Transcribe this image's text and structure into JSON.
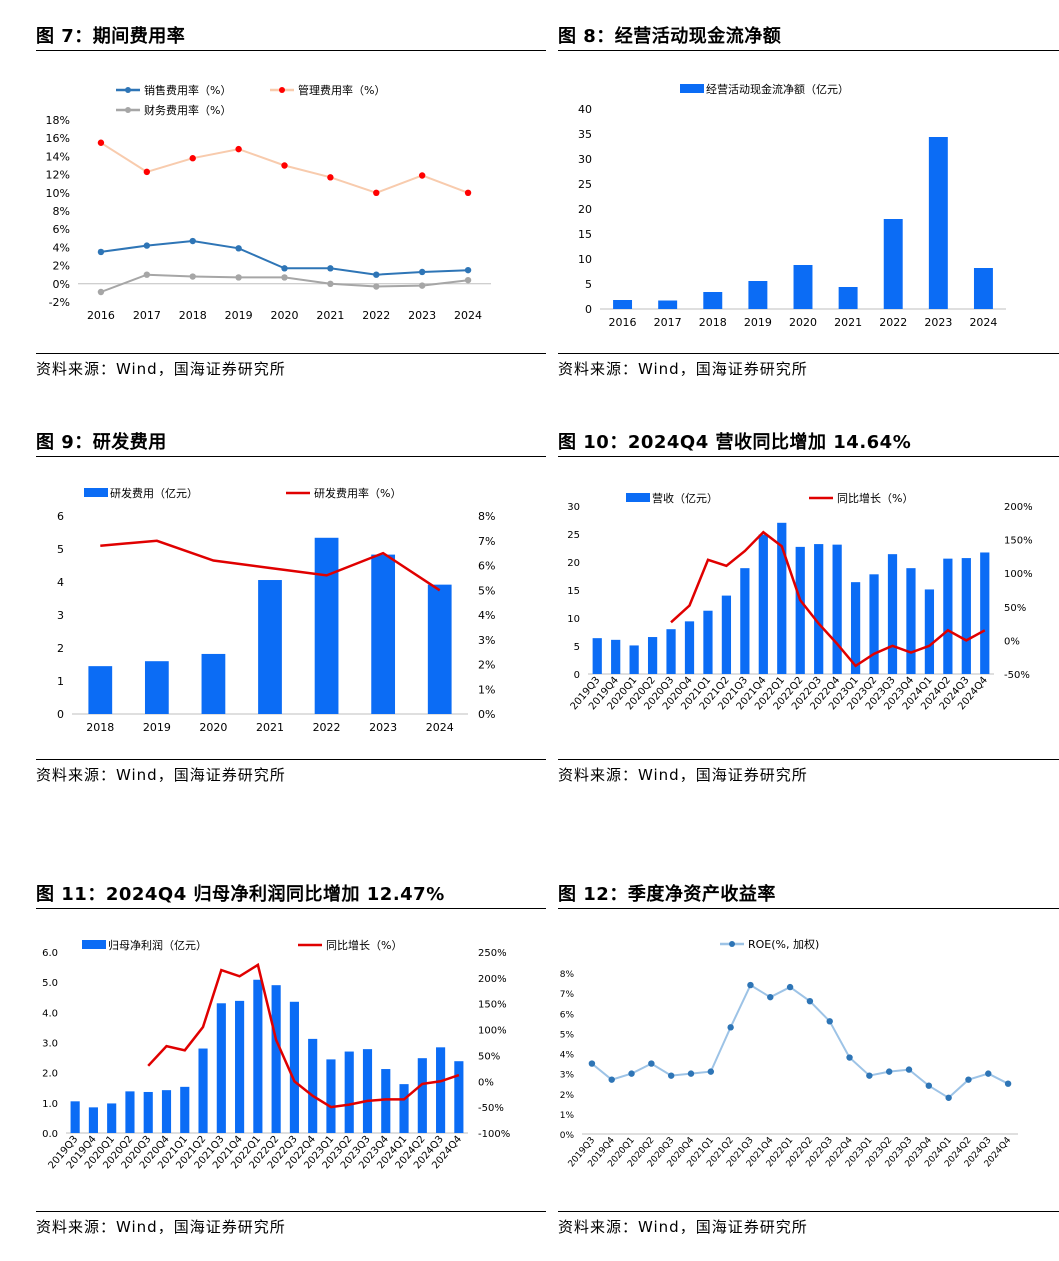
{
  "panels": [
    {
      "title": "图 7：期间费用率",
      "source": "资料来源：Wind，国海证券研究所",
      "chart_data": {
        "type": "line",
        "categories": [
          "2016",
          "2017",
          "2018",
          "2019",
          "2020",
          "2021",
          "2022",
          "2023",
          "2024"
        ],
        "series": [
          {
            "name": "销售费用率（%）",
            "color": "#2e75b6",
            "values": [
              3.5,
              4.2,
              4.7,
              3.9,
              1.7,
              1.7,
              1.0,
              1.3,
              1.5
            ]
          },
          {
            "name": "管理费用率（%）",
            "color": "#ff0000",
            "line_color": "#f8cbad",
            "values": [
              15.5,
              12.3,
              13.8,
              14.8,
              13.0,
              11.7,
              10.0,
              11.9,
              10.0
            ]
          },
          {
            "name": "财务费用率（%）",
            "color": "#a6a6a6",
            "values": [
              -0.9,
              1.0,
              0.8,
              0.7,
              0.7,
              0.0,
              -0.3,
              -0.2,
              0.4
            ]
          }
        ],
        "yticks": [
          "-2%",
          "0%",
          "2%",
          "4%",
          "6%",
          "8%",
          "10%",
          "12%",
          "14%",
          "16%",
          "18%"
        ],
        "ylim": [
          -2,
          18
        ],
        "grid": false,
        "legend": "top"
      }
    },
    {
      "title": "图 8：经营活动现金流净额",
      "source": "资料来源：Wind，国海证券研究所",
      "chart_data": {
        "type": "bar",
        "categories": [
          "2016",
          "2017",
          "2018",
          "2019",
          "2020",
          "2021",
          "2022",
          "2023",
          "2024"
        ],
        "series": [
          {
            "name": "经营活动现金流净额（亿元）",
            "color": "#0b6cf5",
            "values": [
              1.8,
              1.7,
              3.4,
              5.6,
              8.8,
              4.4,
              18.0,
              34.4,
              8.2
            ]
          }
        ],
        "yticks": [
          "0",
          "5",
          "10",
          "15",
          "20",
          "25",
          "30",
          "35",
          "40"
        ],
        "ylim": [
          0,
          40
        ],
        "grid": false,
        "legend": "top"
      }
    },
    {
      "title": "图 9：研发费用",
      "source": "资料来源：Wind，国海证券研究所",
      "chart_data": {
        "type": "bar",
        "categories": [
          "2018",
          "2019",
          "2020",
          "2021",
          "2022",
          "2023",
          "2024"
        ],
        "series": [
          {
            "name": "研发费用（亿元）",
            "kind": "bar",
            "axis": "left",
            "color": "#0b6cf5",
            "values": [
              1.45,
              1.6,
              1.82,
              4.06,
              5.34,
              4.83,
              3.92
            ]
          },
          {
            "name": "研发费用率（%）",
            "kind": "line",
            "axis": "right",
            "color": "#e00000",
            "values": [
              6.8,
              7.0,
              6.2,
              5.9,
              5.6,
              6.5,
              5.0
            ]
          }
        ],
        "yticks": [
          "0",
          "1",
          "2",
          "3",
          "4",
          "5",
          "6"
        ],
        "ylim": [
          0,
          6
        ],
        "y2ticks": [
          "0%",
          "1%",
          "2%",
          "3%",
          "4%",
          "5%",
          "6%",
          "7%",
          "8%"
        ],
        "y2lim": [
          0,
          8
        ],
        "grid": false,
        "legend": "top"
      }
    },
    {
      "title": "图 10：2024Q4 营收同比增加 14.64%",
      "source": "资料来源：Wind，国海证券研究所",
      "chart_data": {
        "type": "bar",
        "categories": [
          "2019Q3",
          "2019Q4",
          "2020Q1",
          "2020Q2",
          "2020Q3",
          "2020Q4",
          "2021Q1",
          "2021Q2",
          "2021Q3",
          "2021Q4",
          "2022Q1",
          "2022Q2",
          "2022Q3",
          "2022Q4",
          "2023Q1",
          "2023Q2",
          "2023Q3",
          "2023Q4",
          "2024Q1",
          "2024Q2",
          "2024Q3",
          "2024Q4"
        ],
        "series": [
          {
            "name": "营收（亿元）",
            "kind": "bar",
            "axis": "left",
            "color": "#0b6cf5",
            "values": [
              6.4,
              6.1,
              5.1,
              6.6,
              8.0,
              9.4,
              11.3,
              14.0,
              18.9,
              24.9,
              27.0,
              22.7,
              23.2,
              23.1,
              16.4,
              17.8,
              21.4,
              18.9,
              15.1,
              20.6,
              20.7,
              21.7
            ]
          },
          {
            "name": "同比增长（%）",
            "kind": "line",
            "axis": "right",
            "color": "#e00000",
            "values": [
              null,
              null,
              null,
              null,
              27,
              52,
              120,
              111,
              133,
              161,
              140,
              60,
              25,
              -5,
              -38,
              -20,
              -8,
              -18,
              -8,
              15,
              0,
              15
            ]
          }
        ],
        "yticks": [
          "0",
          "5",
          "10",
          "15",
          "20",
          "25",
          "30"
        ],
        "ylim": [
          0,
          30
        ],
        "y2ticks": [
          "-50%",
          "0%",
          "50%",
          "100%",
          "150%",
          "200%"
        ],
        "y2lim": [
          -50,
          200
        ],
        "grid": false,
        "legend": "top"
      }
    },
    {
      "title": "图 11：2024Q4 归母净利润同比增加 12.47%",
      "source": "资料来源：Wind，国海证券研究所",
      "chart_data": {
        "type": "bar",
        "categories": [
          "2019Q3",
          "2019Q4",
          "2020Q1",
          "2020Q2",
          "2020Q3",
          "2020Q4",
          "2021Q1",
          "2021Q2",
          "2021Q3",
          "2021Q4",
          "2022Q1",
          "2022Q2",
          "2022Q3",
          "2022Q4",
          "2023Q1",
          "2023Q2",
          "2023Q3",
          "2023Q4",
          "2024Q1",
          "2024Q2",
          "2024Q3",
          "2024Q4"
        ],
        "series": [
          {
            "name": "归母净利润（亿元）",
            "kind": "bar",
            "axis": "left",
            "color": "#0b6cf5",
            "values": [
              1.05,
              0.85,
              0.98,
              1.38,
              1.36,
              1.42,
              1.53,
              2.8,
              4.3,
              4.38,
              5.08,
              4.9,
              4.35,
              3.12,
              2.44,
              2.7,
              2.78,
              2.12,
              1.62,
              2.48,
              2.84,
              2.38
            ]
          },
          {
            "name": "同比增长（%）",
            "kind": "line",
            "axis": "right",
            "color": "#e00000",
            "values": [
              null,
              null,
              null,
              null,
              30,
              68,
              60,
              105,
              215,
              203,
              225,
              80,
              0,
              -28,
              -50,
              -45,
              -38,
              -35,
              -35,
              -5,
              0,
              12
            ]
          }
        ],
        "yticks": [
          "0.0",
          "1.0",
          "2.0",
          "3.0",
          "4.0",
          "5.0",
          "6.0"
        ],
        "ylim": [
          0,
          6
        ],
        "y2ticks": [
          "-100%",
          "-50%",
          "0%",
          "50%",
          "100%",
          "150%",
          "200%",
          "250%"
        ],
        "y2lim": [
          -100,
          250
        ],
        "grid": false,
        "legend": "top"
      }
    },
    {
      "title": "图 12：季度净资产收益率",
      "source": "资料来源：Wind，国海证券研究所",
      "chart_data": {
        "type": "line",
        "categories": [
          "2019Q3",
          "2019Q4",
          "2020Q1",
          "2020Q2",
          "2020Q3",
          "2020Q4",
          "2021Q1",
          "2021Q2",
          "2021Q3",
          "2021Q4",
          "2022Q1",
          "2022Q2",
          "2022Q3",
          "2022Q4",
          "2023Q1",
          "2023Q2",
          "2023Q3",
          "2023Q4",
          "2024Q1",
          "2024Q2",
          "2024Q3",
          "2024Q4"
        ],
        "series": [
          {
            "name": "ROE(%, 加权)",
            "color": "#2e75b6",
            "line_color": "#9dc3e6",
            "values": [
              3.5,
              2.7,
              3.0,
              3.5,
              2.9,
              3.0,
              3.1,
              5.3,
              7.4,
              6.8,
              7.3,
              6.6,
              5.6,
              3.8,
              2.9,
              3.1,
              3.2,
              2.4,
              1.8,
              2.7,
              3.0,
              2.5
            ]
          }
        ],
        "yticks": [
          "0%",
          "1%",
          "2%",
          "3%",
          "4%",
          "5%",
          "6%",
          "7%",
          "8%"
        ],
        "ylim": [
          0,
          8
        ],
        "grid": false,
        "legend": "top"
      }
    }
  ]
}
